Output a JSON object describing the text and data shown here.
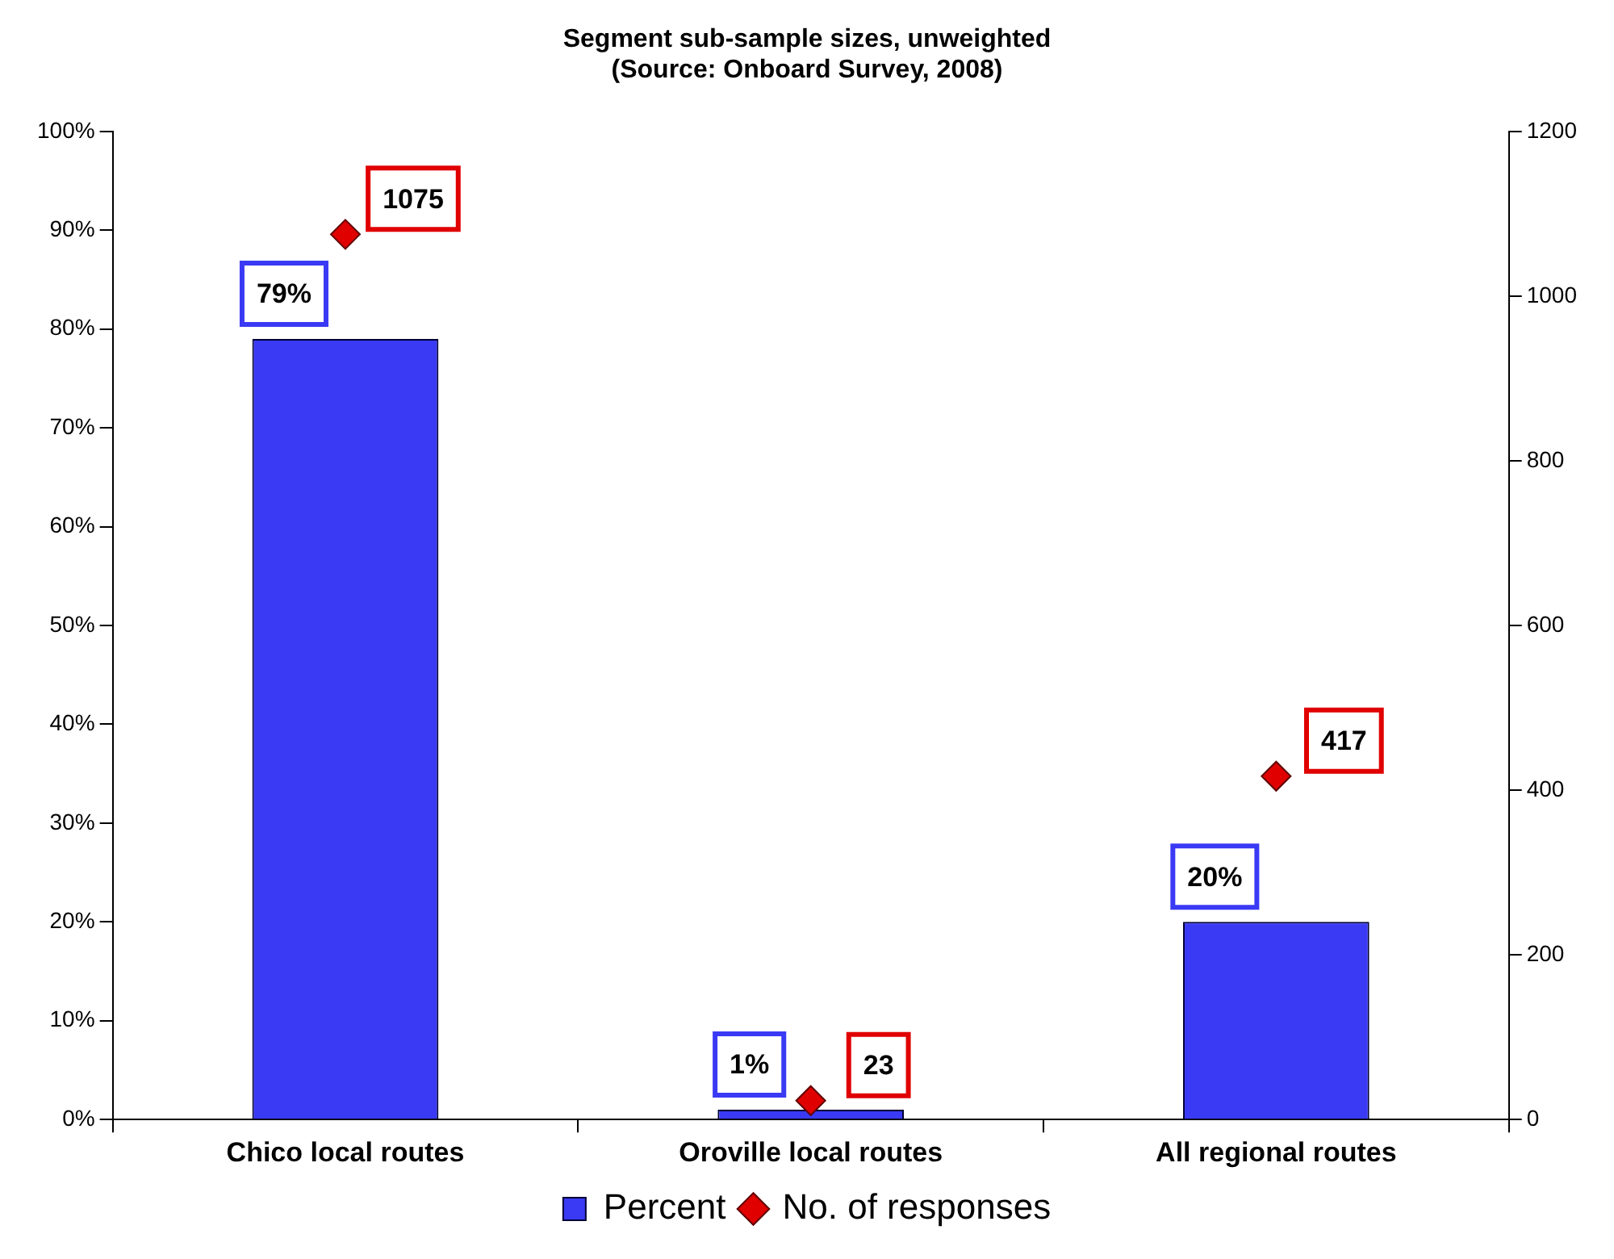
{
  "chart_data": {
    "type": "bar",
    "title": "Segment sub-sample sizes, unweighted",
    "subtitle": "(Source: Onboard Survey, 2008)",
    "categories": [
      "Chico local routes",
      "Oroville local routes",
      "All regional routes"
    ],
    "series": [
      {
        "name": "Percent",
        "color": "#3a3af5",
        "values": [
          79,
          1,
          20
        ],
        "value_labels": [
          "79%",
          "1%",
          "20%"
        ]
      },
      {
        "name": "No. of responses",
        "type": "scatter",
        "axis": "y2",
        "color": "#e00000",
        "values": [
          1075,
          23,
          417
        ],
        "value_labels": [
          "1075",
          "23",
          "417"
        ]
      }
    ],
    "ylim": [
      0,
      100
    ],
    "yticks": [
      {
        "value": 0,
        "label": "0%"
      },
      {
        "value": 10,
        "label": "10%"
      },
      {
        "value": 20,
        "label": "20%"
      },
      {
        "value": 30,
        "label": "30%"
      },
      {
        "value": 40,
        "label": "40%"
      },
      {
        "value": 50,
        "label": "50%"
      },
      {
        "value": 60,
        "label": "60%"
      },
      {
        "value": 70,
        "label": "70%"
      },
      {
        "value": 80,
        "label": "80%"
      },
      {
        "value": 90,
        "label": "90%"
      },
      {
        "value": 100,
        "label": "100%"
      }
    ],
    "y2lim": [
      0,
      1200
    ],
    "y2ticks": [
      0,
      200,
      400,
      600,
      800,
      1000,
      1200
    ],
    "grid": false,
    "legend": "bottom",
    "marker": "diamond"
  }
}
